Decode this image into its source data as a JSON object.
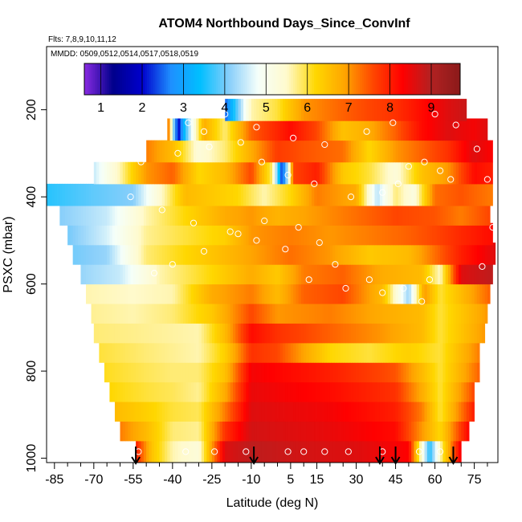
{
  "chart_data": {
    "type": "heatmap",
    "title": "ATOM4 Northbound Days_Since_ConvInf",
    "flights_label": "Flts: 7,8,9,10,11,12",
    "dates_label": "MMDD: 0509,0512,0514,0517,0518,0519",
    "xlabel": "Latitude (deg N)",
    "ylabel": "PSXC (mbar)",
    "xlim": [
      -88,
      84
    ],
    "ylim": [
      1010,
      55
    ],
    "x_ticks": [
      -85,
      -70,
      -55,
      -40,
      -25,
      -10,
      5,
      15,
      30,
      45,
      60,
      75
    ],
    "x_minor_ticks": [
      -80,
      -75,
      -65,
      -60,
      -50,
      -45,
      -35,
      -30,
      -20,
      -15,
      -5,
      0,
      10,
      20,
      25,
      35,
      40,
      50,
      55,
      65,
      70,
      80
    ],
    "y_ticks": [
      200,
      400,
      600,
      800,
      1000
    ],
    "colorbar": {
      "range": [
        0.6,
        9.7
      ],
      "ticks": [
        1,
        2,
        3,
        4,
        5,
        6,
        7,
        8,
        9
      ],
      "colors": [
        "#8a2be2",
        "#00008b",
        "#0000cd",
        "#1e90ff",
        "#00bfff",
        "#87cefa",
        "#f5fffa",
        "#fffacd",
        "#ffd700",
        "#ffa500",
        "#ff4500",
        "#ff0000",
        "#b22222",
        "#8b1a1a"
      ]
    },
    "flight_latitudes": [
      -54,
      -9,
      39,
      45,
      67
    ],
    "pressure_bins": [
      {
        "p": 985,
        "lat_range": [
          -54,
          70
        ]
      },
      {
        "p": 935,
        "lat_range": [
          -60,
          73
        ]
      },
      {
        "p": 890,
        "lat_range": [
          -62,
          75
        ]
      },
      {
        "p": 845,
        "lat_range": [
          -64,
          75
        ]
      },
      {
        "p": 800,
        "lat_range": [
          -66,
          77
        ]
      },
      {
        "p": 755,
        "lat_range": [
          -68,
          77
        ]
      },
      {
        "p": 710,
        "lat_range": [
          -70,
          79
        ]
      },
      {
        "p": 665,
        "lat_range": [
          -71,
          80
        ]
      },
      {
        "p": 620,
        "lat_range": [
          -73,
          81
        ]
      },
      {
        "p": 575,
        "lat_range": [
          -75,
          82
        ]
      },
      {
        "p": 530,
        "lat_range": [
          -78,
          83
        ]
      },
      {
        "p": 485,
        "lat_range": [
          -80,
          82
        ]
      },
      {
        "p": 440,
        "lat_range": [
          -83,
          81
        ]
      },
      {
        "p": 395,
        "lat_range": [
          -88,
          82
        ]
      },
      {
        "p": 345,
        "lat_range": [
          -70,
          82
        ]
      },
      {
        "p": 295,
        "lat_range": [
          -50,
          82
        ]
      },
      {
        "p": 245,
        "lat_range": [
          -42,
          80
        ]
      },
      {
        "p": 200,
        "lat_range": [
          -20,
          72
        ]
      }
    ],
    "value_profiles": [
      [
        [
          -54,
          8.0
        ],
        [
          -48,
          6.5
        ],
        [
          -40,
          5.6
        ],
        [
          -30,
          5.3
        ],
        [
          -20,
          8.6
        ],
        [
          -10,
          8.9
        ],
        [
          10,
          8.7
        ],
        [
          30,
          8.6
        ],
        [
          50,
          8.3
        ],
        [
          58,
          3.5
        ],
        [
          63,
          6.0
        ],
        [
          70,
          8.5
        ]
      ],
      [
        [
          -60,
          7.2
        ],
        [
          -50,
          6.6
        ],
        [
          -40,
          5.8
        ],
        [
          -30,
          5.7
        ],
        [
          -20,
          7.8
        ],
        [
          -10,
          8.7
        ],
        [
          20,
          8.5
        ],
        [
          45,
          8.2
        ],
        [
          55,
          7.0
        ],
        [
          62,
          6.2
        ],
        [
          73,
          8.3
        ]
      ],
      [
        [
          -62,
          6.6
        ],
        [
          -50,
          6.3
        ],
        [
          -40,
          6.0
        ],
        [
          -30,
          5.9
        ],
        [
          -20,
          7.2
        ],
        [
          -10,
          8.6
        ],
        [
          20,
          8.4
        ],
        [
          45,
          8.0
        ],
        [
          55,
          7.2
        ],
        [
          62,
          6.0
        ],
        [
          75,
          8.0
        ]
      ],
      [
        [
          -64,
          6.2
        ],
        [
          -50,
          6.0
        ],
        [
          -40,
          5.9
        ],
        [
          -30,
          5.7
        ],
        [
          -20,
          6.8
        ],
        [
          -10,
          8.5
        ],
        [
          20,
          8.2
        ],
        [
          45,
          7.8
        ],
        [
          55,
          6.8
        ],
        [
          62,
          6.0
        ],
        [
          75,
          7.6
        ]
      ],
      [
        [
          -66,
          6.1
        ],
        [
          -50,
          5.9
        ],
        [
          -40,
          5.8
        ],
        [
          -30,
          5.8
        ],
        [
          -20,
          6.5
        ],
        [
          -10,
          8.4
        ],
        [
          20,
          8.0
        ],
        [
          45,
          7.5
        ],
        [
          55,
          6.6
        ],
        [
          62,
          6.0
        ],
        [
          77,
          7.4
        ]
      ],
      [
        [
          -68,
          6.0
        ],
        [
          -50,
          5.8
        ],
        [
          -30,
          5.6
        ],
        [
          -20,
          6.3
        ],
        [
          -10,
          7.8
        ],
        [
          0,
          7.6
        ],
        [
          20,
          6.2
        ],
        [
          35,
          6.0
        ],
        [
          50,
          6.3
        ],
        [
          62,
          6.0
        ],
        [
          77,
          7.2
        ]
      ],
      [
        [
          -70,
          5.8
        ],
        [
          -50,
          5.7
        ],
        [
          -30,
          5.6
        ],
        [
          -20,
          6.6
        ],
        [
          -10,
          8.2
        ],
        [
          0,
          7.8
        ],
        [
          20,
          7.4
        ],
        [
          40,
          7.0
        ],
        [
          55,
          6.6
        ],
        [
          62,
          6.0
        ],
        [
          79,
          7.0
        ]
      ],
      [
        [
          -71,
          5.7
        ],
        [
          -55,
          5.6
        ],
        [
          -40,
          5.8
        ],
        [
          -25,
          6.4
        ],
        [
          -10,
          7.6
        ],
        [
          0,
          7.0
        ],
        [
          20,
          7.2
        ],
        [
          40,
          6.8
        ],
        [
          55,
          6.6
        ],
        [
          62,
          6.0
        ],
        [
          80,
          7.0
        ]
      ],
      [
        [
          -73,
          5.6
        ],
        [
          -55,
          5.5
        ],
        [
          -40,
          5.6
        ],
        [
          -25,
          6.8
        ],
        [
          -10,
          7.2
        ],
        [
          0,
          6.6
        ],
        [
          10,
          7.4
        ],
        [
          25,
          7.6
        ],
        [
          40,
          6.6
        ],
        [
          50,
          4.2
        ],
        [
          56,
          7.0
        ],
        [
          62,
          6.0
        ],
        [
          81,
          7.4
        ]
      ],
      [
        [
          -75,
          4.2
        ],
        [
          -60,
          4.5
        ],
        [
          -45,
          5.6
        ],
        [
          -25,
          6.2
        ],
        [
          -10,
          6.8
        ],
        [
          0,
          6.4
        ],
        [
          10,
          7.2
        ],
        [
          25,
          7.4
        ],
        [
          40,
          6.8
        ],
        [
          55,
          6.6
        ],
        [
          62,
          5.5
        ],
        [
          70,
          8.6
        ],
        [
          82,
          8.9
        ]
      ],
      [
        [
          -78,
          4.0
        ],
        [
          -65,
          4.2
        ],
        [
          -50,
          5.8
        ],
        [
          -35,
          6.2
        ],
        [
          -20,
          6.6
        ],
        [
          -10,
          6.9
        ],
        [
          5,
          7.3
        ],
        [
          20,
          7.0
        ],
        [
          35,
          6.4
        ],
        [
          50,
          6.6
        ],
        [
          60,
          7.3
        ],
        [
          70,
          8.0
        ],
        [
          83,
          8.6
        ]
      ],
      [
        [
          -80,
          4.0
        ],
        [
          -65,
          4.6
        ],
        [
          -50,
          5.7
        ],
        [
          -35,
          6.0
        ],
        [
          -20,
          6.3
        ],
        [
          -10,
          7.0
        ],
        [
          5,
          7.2
        ],
        [
          20,
          7.0
        ],
        [
          35,
          7.2
        ],
        [
          50,
          7.4
        ],
        [
          60,
          7.6
        ],
        [
          70,
          7.9
        ],
        [
          82,
          8.2
        ]
      ],
      [
        [
          -83,
          4.1
        ],
        [
          -65,
          4.5
        ],
        [
          -50,
          5.6
        ],
        [
          -35,
          6.2
        ],
        [
          -20,
          6.8
        ],
        [
          -10,
          7.0
        ],
        [
          0,
          6.7
        ],
        [
          15,
          7.0
        ],
        [
          30,
          7.3
        ],
        [
          45,
          7.6
        ],
        [
          60,
          7.5
        ],
        [
          70,
          7.2
        ],
        [
          81,
          7.6
        ]
      ],
      [
        [
          -88,
          3.6
        ],
        [
          -70,
          3.9
        ],
        [
          -55,
          4.1
        ],
        [
          -45,
          5.4
        ],
        [
          -35,
          6.6
        ],
        [
          -25,
          6.4
        ],
        [
          -15,
          6.2
        ],
        [
          -5,
          5.6
        ],
        [
          5,
          6.2
        ],
        [
          15,
          7.2
        ],
        [
          30,
          6.8
        ],
        [
          38,
          4.4
        ],
        [
          45,
          5.8
        ],
        [
          52,
          5.2
        ],
        [
          60,
          7.3
        ],
        [
          70,
          7.5
        ],
        [
          82,
          7.2
        ]
      ],
      [
        [
          -70,
          4.5
        ],
        [
          -60,
          5.6
        ],
        [
          -50,
          7.0
        ],
        [
          -40,
          7.4
        ],
        [
          -30,
          6.2
        ],
        [
          -20,
          6.6
        ],
        [
          -10,
          7.6
        ],
        [
          -2,
          5.8
        ],
        [
          2,
          2.0
        ],
        [
          6,
          7.6
        ],
        [
          15,
          8.0
        ],
        [
          25,
          6.4
        ],
        [
          35,
          6.0
        ],
        [
          45,
          5.3
        ],
        [
          55,
          6.5
        ],
        [
          65,
          7.0
        ],
        [
          75,
          8.2
        ],
        [
          82,
          8.0
        ]
      ],
      [
        [
          -50,
          7.2
        ],
        [
          -40,
          6.6
        ],
        [
          -30,
          5.3
        ],
        [
          -20,
          5.8
        ],
        [
          -10,
          6.8
        ],
        [
          0,
          7.7
        ],
        [
          10,
          7.5
        ],
        [
          25,
          7.3
        ],
        [
          35,
          6.2
        ],
        [
          45,
          7.0
        ],
        [
          55,
          7.4
        ],
        [
          65,
          7.8
        ],
        [
          75,
          8.6
        ],
        [
          82,
          8.3
        ]
      ],
      [
        [
          -42,
          7.8
        ],
        [
          -38,
          1.8
        ],
        [
          -34,
          4.2
        ],
        [
          -28,
          6.8
        ],
        [
          -20,
          5.8
        ],
        [
          -10,
          7.4
        ],
        [
          5,
          8.2
        ],
        [
          15,
          7.6
        ],
        [
          25,
          6.5
        ],
        [
          35,
          6.8
        ],
        [
          45,
          7.4
        ],
        [
          55,
          8.2
        ],
        [
          65,
          8.6
        ],
        [
          75,
          8.4
        ],
        [
          80,
          8.6
        ]
      ],
      [
        [
          -20,
          2.4
        ],
        [
          -10,
          5.6
        ],
        [
          0,
          6.0
        ],
        [
          10,
          7.0
        ],
        [
          25,
          7.4
        ],
        [
          35,
          7.6
        ],
        [
          45,
          7.8
        ],
        [
          55,
          8.2
        ],
        [
          65,
          8.6
        ],
        [
          72,
          8.8
        ]
      ]
    ],
    "flight_points": [
      [
        -53,
        985
      ],
      [
        -35,
        985
      ],
      [
        -24,
        985
      ],
      [
        -12,
        985
      ],
      [
        4,
        985
      ],
      [
        10,
        985
      ],
      [
        18,
        985
      ],
      [
        27,
        985
      ],
      [
        40,
        985
      ],
      [
        54,
        985
      ],
      [
        62,
        985
      ],
      [
        -47,
        575
      ],
      [
        -40,
        555
      ],
      [
        -28,
        525
      ],
      [
        -15,
        485
      ],
      [
        -5,
        455
      ],
      [
        8,
        470
      ],
      [
        16,
        505
      ],
      [
        22,
        555
      ],
      [
        35,
        590
      ],
      [
        48,
        610
      ],
      [
        58,
        590
      ],
      [
        -56,
        400
      ],
      [
        -44,
        430
      ],
      [
        -32,
        460
      ],
      [
        -18,
        480
      ],
      [
        -8,
        500
      ],
      [
        3,
        520
      ],
      [
        12,
        590
      ],
      [
        26,
        610
      ],
      [
        40,
        620
      ],
      [
        55,
        640
      ],
      [
        -52,
        320
      ],
      [
        -38,
        300
      ],
      [
        -26,
        285
      ],
      [
        -14,
        275
      ],
      [
        -6,
        320
      ],
      [
        4,
        350
      ],
      [
        14,
        370
      ],
      [
        28,
        400
      ],
      [
        40,
        390
      ],
      [
        46,
        370
      ],
      [
        50,
        330
      ],
      [
        56,
        320
      ],
      [
        62,
        340
      ],
      [
        66,
        360
      ],
      [
        -34,
        230
      ],
      [
        -28,
        250
      ],
      [
        -20,
        210
      ],
      [
        -8,
        240
      ],
      [
        6,
        265
      ],
      [
        18,
        280
      ],
      [
        34,
        250
      ],
      [
        44,
        230
      ],
      [
        60,
        210
      ],
      [
        68,
        235
      ],
      [
        76,
        290
      ],
      [
        80,
        360
      ],
      [
        82,
        470
      ],
      [
        78,
        560
      ]
    ]
  }
}
